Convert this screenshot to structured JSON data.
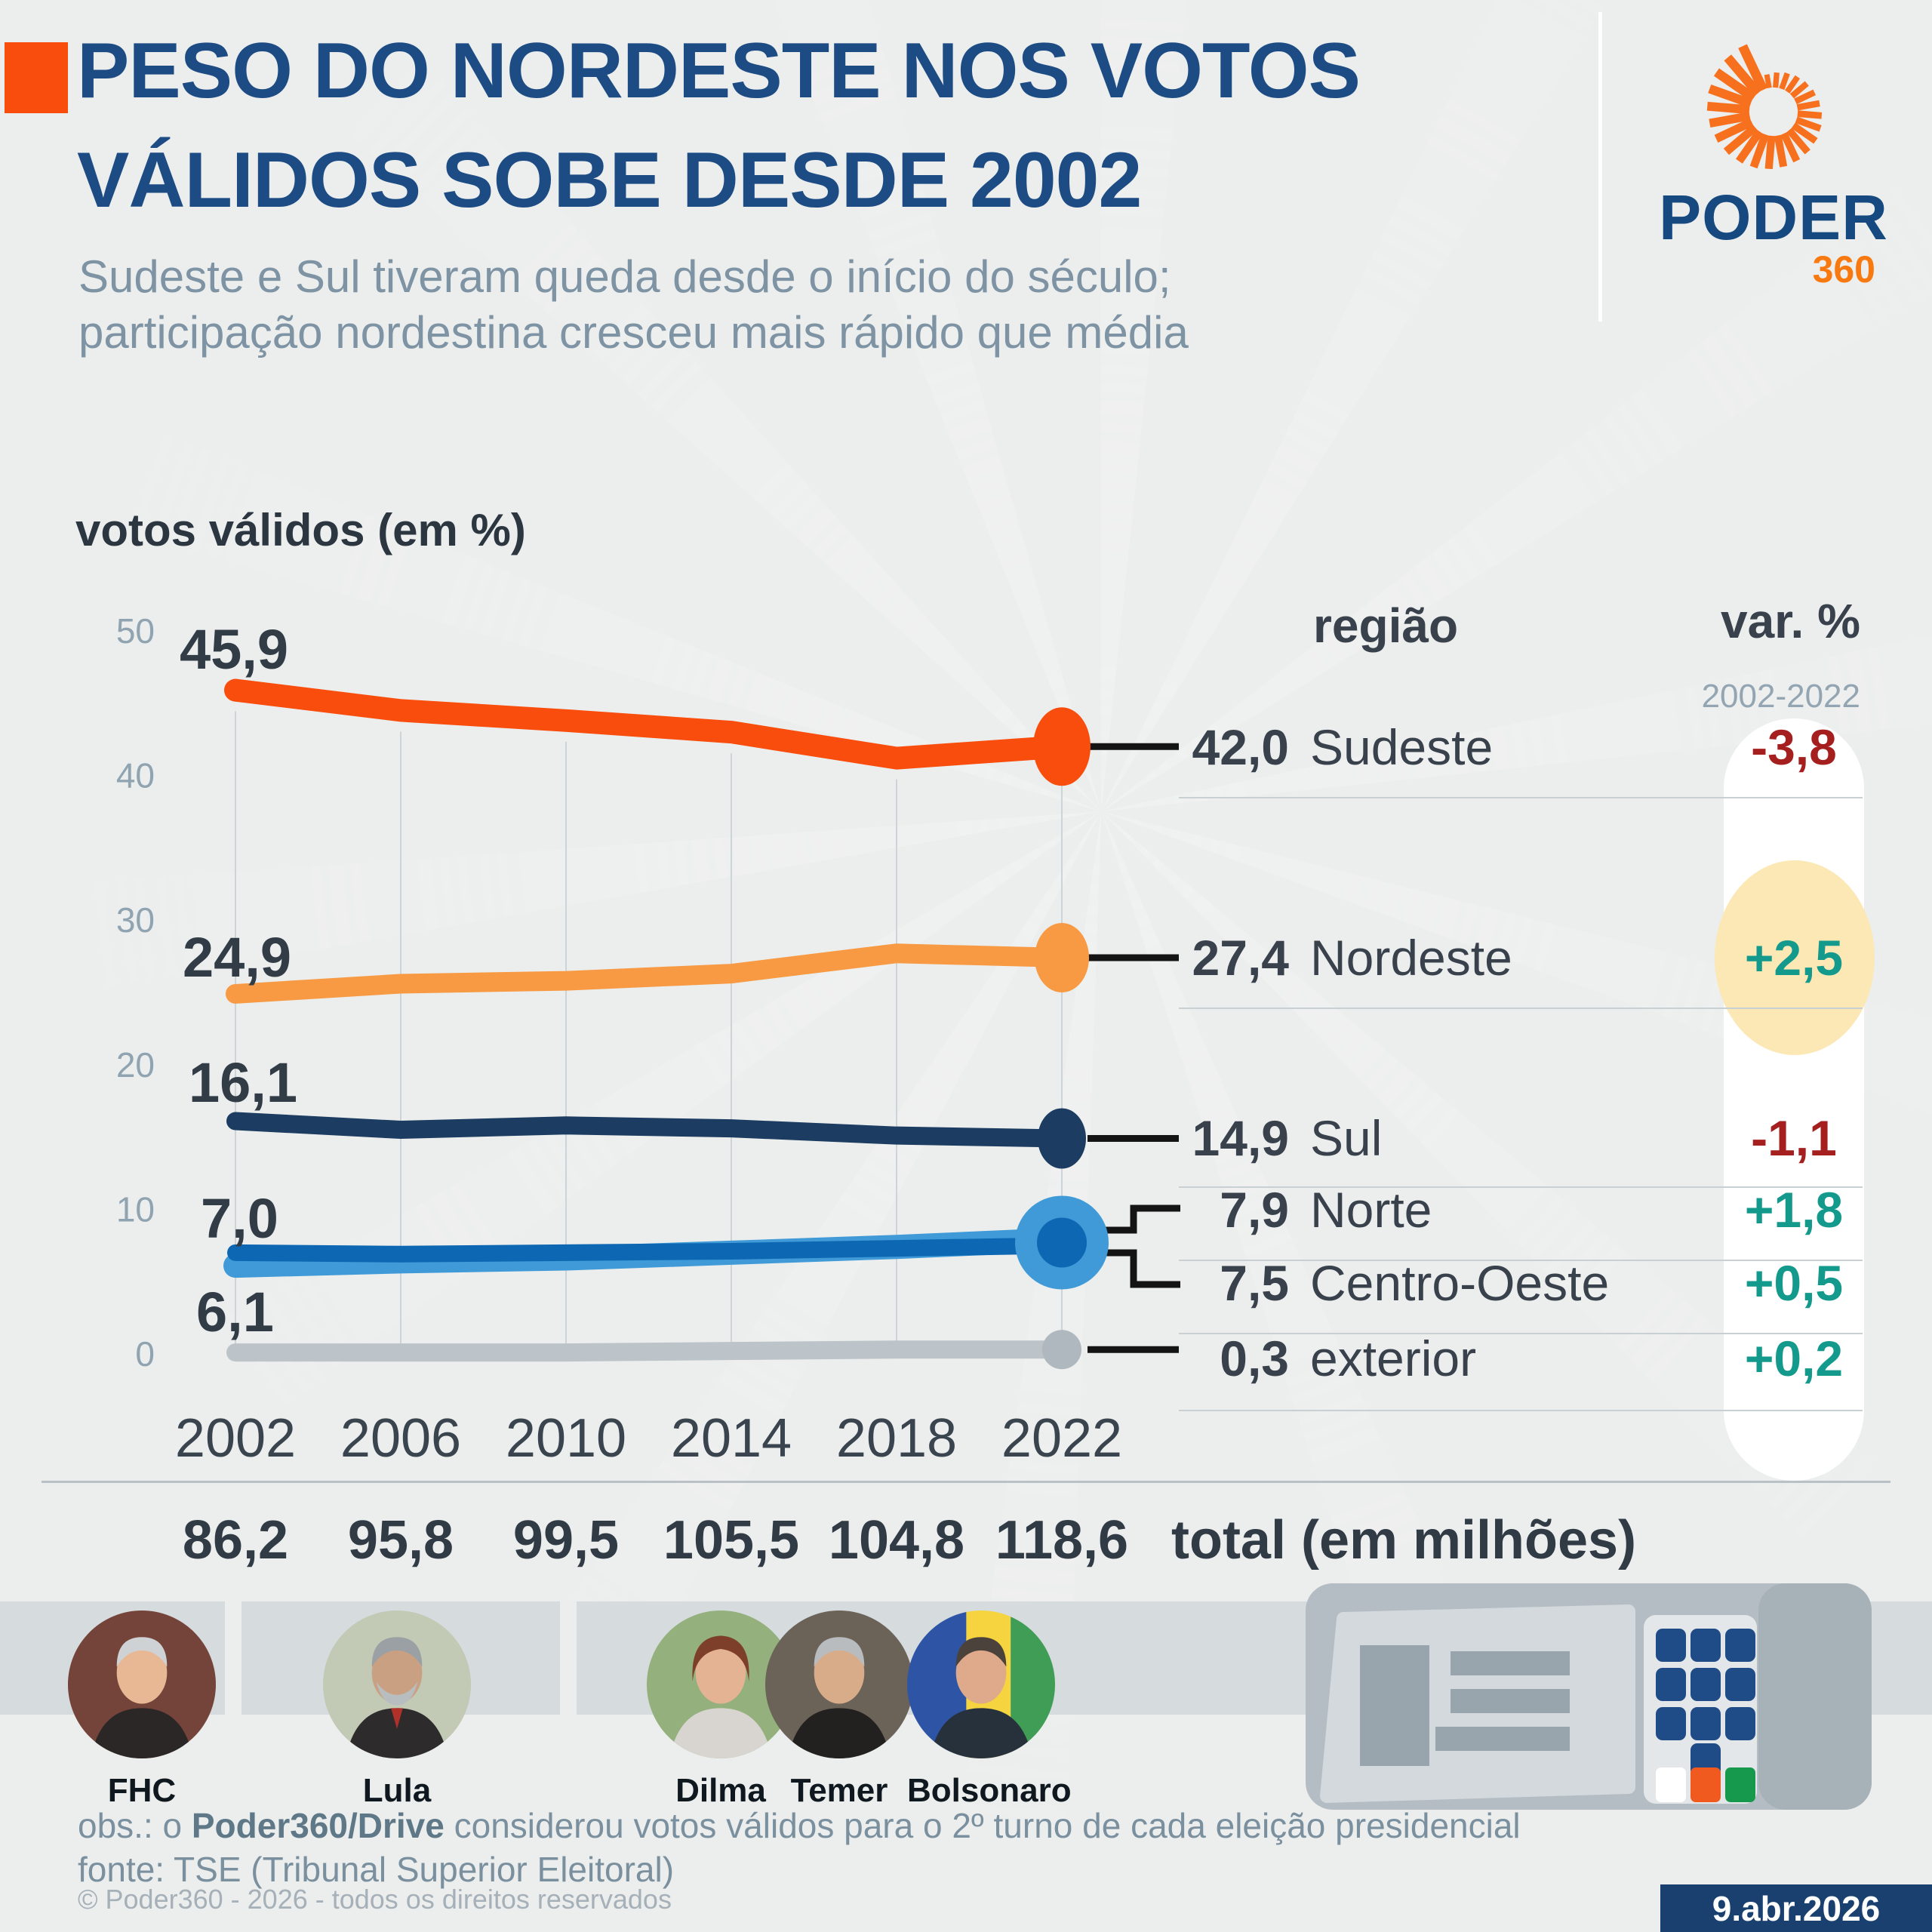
{
  "header": {
    "title_line1": "PESO DO NORDESTE NOS VOTOS",
    "title_line2": "VÁLIDOS SOBE DESDE 2002",
    "subtitle_line1": "Sudeste e Sul tiveram queda desde o início do século;",
    "subtitle_line2": "participação nordestina cresceu mais rápido que média",
    "logo_text": "PODER",
    "logo_360": "360",
    "accent_color": "#f94d0d",
    "title_color": "#1d4c85"
  },
  "chart_data": {
    "type": "line",
    "title": "votos válidos (em %)",
    "x": [
      2002,
      2006,
      2010,
      2014,
      2018,
      2022
    ],
    "ylim": [
      0,
      50
    ],
    "yticks": [
      50,
      40,
      30,
      20,
      10,
      0
    ],
    "grid": "vertical",
    "legend_position": "right",
    "series": [
      {
        "name": "Sudeste",
        "color": "#f94d0d",
        "width": 30,
        "values": [
          45.9,
          44.5,
          43.8,
          43.0,
          41.2,
          42.0
        ],
        "start_label": "45,9",
        "end_label": "42,0",
        "var_2002_2022": "-3,8"
      },
      {
        "name": "Nordeste",
        "color": "#f79a43",
        "width": 26,
        "values": [
          24.9,
          25.6,
          25.8,
          26.3,
          27.7,
          27.4
        ],
        "start_label": "24,9",
        "end_label": "27,4",
        "var_2002_2022": "+2,5"
      },
      {
        "name": "Sul",
        "color": "#1c3c61",
        "width": 24,
        "values": [
          16.1,
          15.5,
          15.8,
          15.6,
          15.1,
          14.9
        ],
        "start_label": "16,1",
        "end_label": "14,9",
        "var_2002_2022": "-1,1"
      },
      {
        "name": "Centro-Oeste",
        "color": "#0e67b2",
        "width": 22,
        "values": [
          7.0,
          6.9,
          7.0,
          7.1,
          7.3,
          7.5
        ],
        "start_label": "7,0",
        "end_label": "7,5",
        "var_2002_2022": "+0,5"
      },
      {
        "name": "Norte",
        "color": "#3f9ad7",
        "width": 32,
        "values": [
          6.1,
          6.4,
          6.6,
          7.0,
          7.4,
          7.9
        ],
        "start_label": "6,1",
        "end_label": "7,9",
        "var_2002_2022": "+1,8"
      },
      {
        "name": "exterior",
        "color": "#bcc4c9",
        "width": 24,
        "values": [
          0.1,
          0.1,
          0.1,
          0.2,
          0.3,
          0.3
        ],
        "start_label": "",
        "end_label": "0,3",
        "var_2002_2022": "+0,2"
      }
    ]
  },
  "legend": {
    "region_header": "região",
    "var_header": "var. %",
    "var_subheader": "2002-2022",
    "rows": [
      {
        "value": "42,0",
        "name": "Sudeste",
        "var": "-3,8",
        "var_type": "neg"
      },
      {
        "value": "27,4",
        "name": "Nordeste",
        "var": "+2,5",
        "var_type": "pos",
        "highlighted": true
      },
      {
        "value": "14,9",
        "name": "Sul",
        "var": "-1,1",
        "var_type": "neg"
      },
      {
        "value": "7,9",
        "name": "Norte",
        "var": "+1,8",
        "var_type": "pos"
      },
      {
        "value": "7,5",
        "name": "Centro-Oeste",
        "var": "+0,5",
        "var_type": "pos"
      },
      {
        "value": "0,3",
        "name": "exterior",
        "var": "+0,2",
        "var_type": "pos"
      }
    ],
    "highlight_color": "#fbe8b5",
    "negative_color": "#a51f1f",
    "positive_color": "#149a8c"
  },
  "totals": {
    "values": [
      "86,2",
      "95,8",
      "99,5",
      "105,5",
      "104,8",
      "118,6"
    ],
    "label": "total (em milhões)"
  },
  "presidents": [
    {
      "name": "FHC"
    },
    {
      "name": "Lula"
    },
    {
      "name": "Dilma"
    },
    {
      "name": "Temer"
    },
    {
      "name": "Bolsonaro"
    }
  ],
  "footer": {
    "obs_prefix": "obs.: o ",
    "obs_bold": "Poder360/Drive",
    "obs_rest": " considerou votos válidos para o 2º turno de cada eleição presidencial",
    "fonte": "fonte: TSE (Tribunal Superior Eleitoral)",
    "copyright": "© Poder360 - 2026 - todos os direitos reservados",
    "date": "9.abr.2026"
  }
}
